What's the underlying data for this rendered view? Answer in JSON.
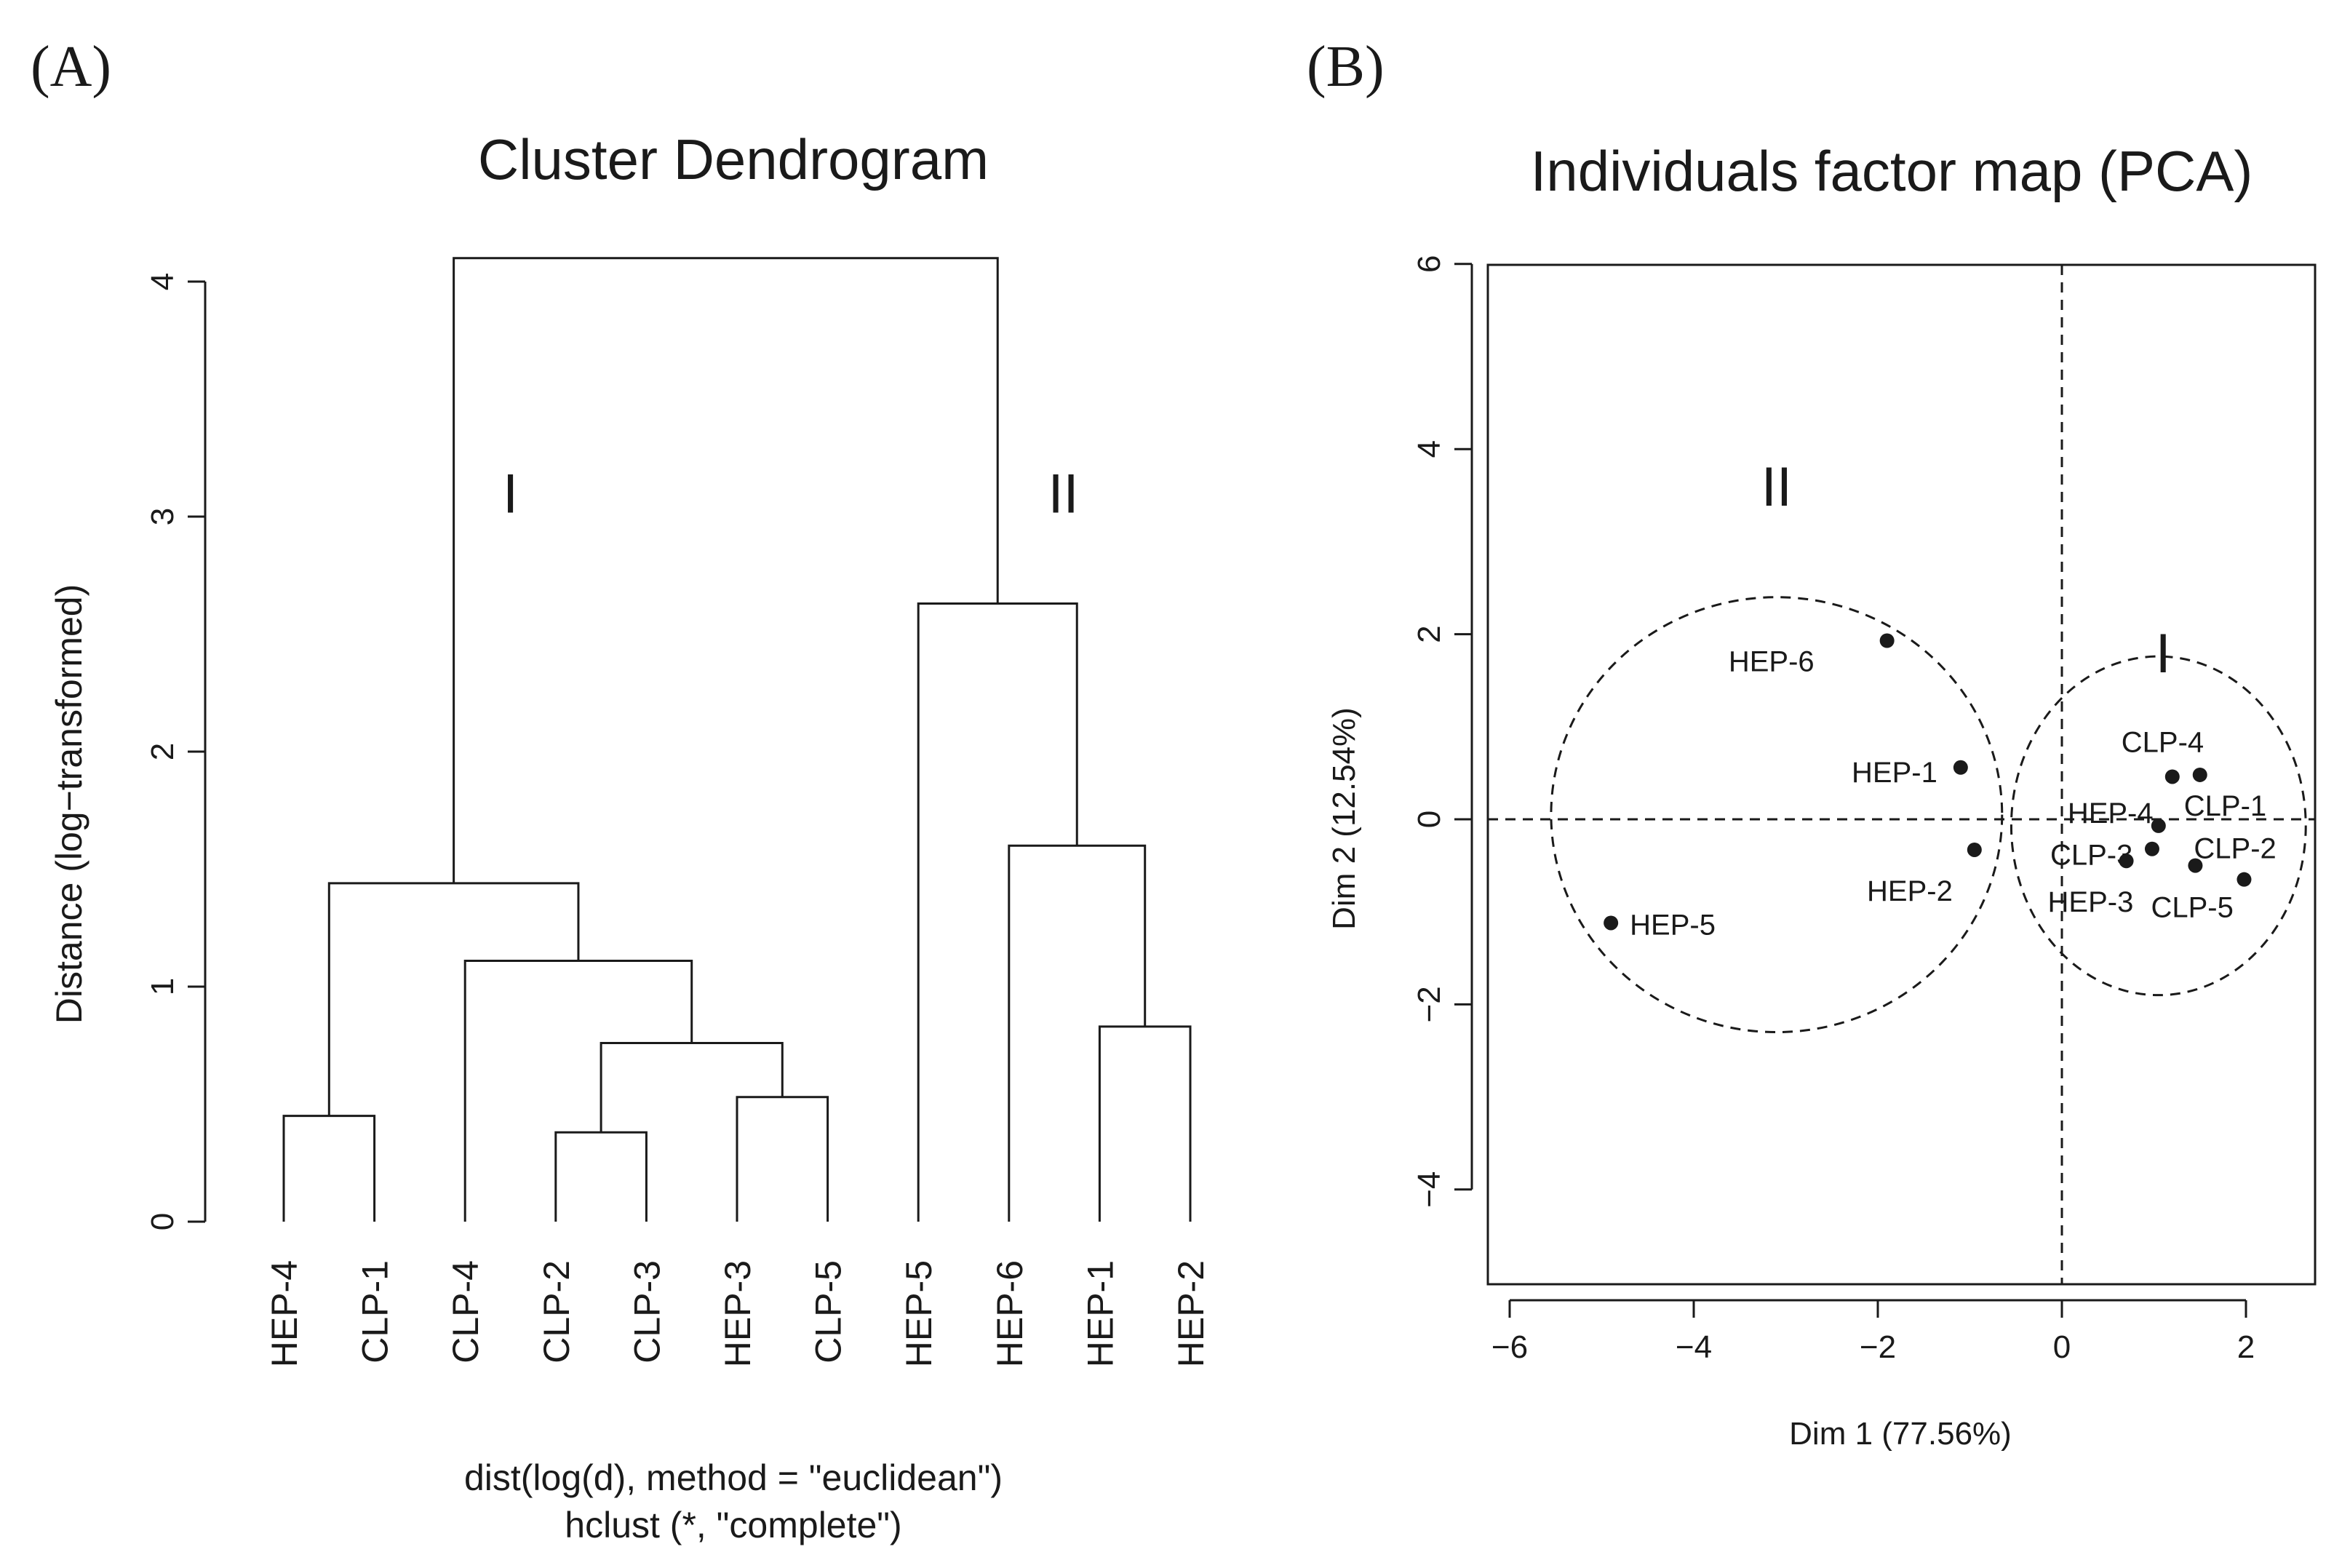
{
  "panels": {
    "a_label": "(A)",
    "b_label": "(B)"
  },
  "chart_data": [
    {
      "type": "dendrogram",
      "title": "Cluster Dendrogram",
      "ylabel": "Distance (log−transformed)",
      "xlabel_line1": "dist(log(d), method = \"euclidean\")",
      "xlabel_line2": "hclust (*, \"complete\")",
      "ylim": [
        0,
        4
      ],
      "yticks": [
        0,
        1,
        2,
        3,
        4
      ],
      "leaves": [
        "HEP-4",
        "CLP-1",
        "CLP-4",
        "CLP-2",
        "CLP-3",
        "HEP-3",
        "CLP-5",
        "HEP-5",
        "HEP-6",
        "HEP-1",
        "HEP-2"
      ],
      "merges": [
        {
          "left": "CLP-2",
          "right": "CLP-3",
          "height": 0.38
        },
        {
          "left": "HEP-4",
          "right": "CLP-1",
          "height": 0.45
        },
        {
          "left": "HEP-3",
          "right": "CLP-5",
          "height": 0.53
        },
        {
          "left": "CLP-2,CLP-3",
          "right": "HEP-3,CLP-5",
          "height": 0.76
        },
        {
          "left": "HEP-1",
          "right": "HEP-2",
          "height": 0.83
        },
        {
          "left": "CLP-4",
          "right": "CLP-2,CLP-3,HEP-3,CLP-5",
          "height": 1.11
        },
        {
          "left": "HEP-4,CLP-1",
          "right": "CLP-4,CLP-2,CLP-3,HEP-3,CLP-5",
          "height": 1.44
        },
        {
          "left": "HEP-6",
          "right": "HEP-1,HEP-2",
          "height": 1.6
        },
        {
          "left": "HEP-5",
          "right": "HEP-6,HEP-1,HEP-2",
          "height": 2.63
        },
        {
          "left": "HEP-4,CLP-1,CLP-4,CLP-2,CLP-3,HEP-3,CLP-5",
          "right": "HEP-5,HEP-6,HEP-1,HEP-2",
          "height": 4.1
        }
      ],
      "cluster_labels": [
        {
          "text": "I",
          "x_leaf": 2.5,
          "y": 3.1
        },
        {
          "text": "II",
          "x_leaf": 8.6,
          "y": 3.1
        }
      ]
    },
    {
      "type": "scatter",
      "title": "Individuals factor map (PCA)",
      "xlabel": "Dim 1 (77.56%)",
      "ylabel": "Dim 2 (12.54%)",
      "xlim": [
        -6.2,
        2.7
      ],
      "ylim": [
        -5,
        6
      ],
      "xticks": [
        -6,
        -4,
        -2,
        0,
        2
      ],
      "yticks": [
        -4,
        -2,
        0,
        2,
        4,
        6
      ],
      "reference_lines": {
        "x": 0,
        "y": 0
      },
      "points": [
        {
          "label": "HEP-6",
          "x": -1.9,
          "y": 1.93
        },
        {
          "label": "HEP-1",
          "x": -1.1,
          "y": 0.56
        },
        {
          "label": "HEP-2",
          "x": -0.95,
          "y": -0.33
        },
        {
          "label": "HEP-5",
          "x": -4.9,
          "y": -1.12
        },
        {
          "label": "CLP-4",
          "x": 1.2,
          "y": 0.46
        },
        {
          "label": "CLP-1",
          "x": 1.5,
          "y": 0.48
        },
        {
          "label": "HEP-4",
          "x": 1.05,
          "y": -0.07
        },
        {
          "label": "CLP-3",
          "x": 0.98,
          "y": -0.32
        },
        {
          "label": "HEP-3",
          "x": 0.7,
          "y": -0.45
        },
        {
          "label": "CLP-2",
          "x": 1.45,
          "y": -0.5
        },
        {
          "label": "CLP-5",
          "x": 1.98,
          "y": -0.65
        }
      ],
      "ellipses": [
        {
          "label": "II",
          "cx": -3.1,
          "cy": 0.05,
          "rx": 2.45,
          "ry": 2.35,
          "label_x": -3.1,
          "label_y": 3.6
        },
        {
          "label": "I",
          "cx": 1.05,
          "cy": -0.07,
          "rx": 1.6,
          "ry": 1.83,
          "label_x": 1.1,
          "label_y": 1.8
        }
      ]
    }
  ]
}
